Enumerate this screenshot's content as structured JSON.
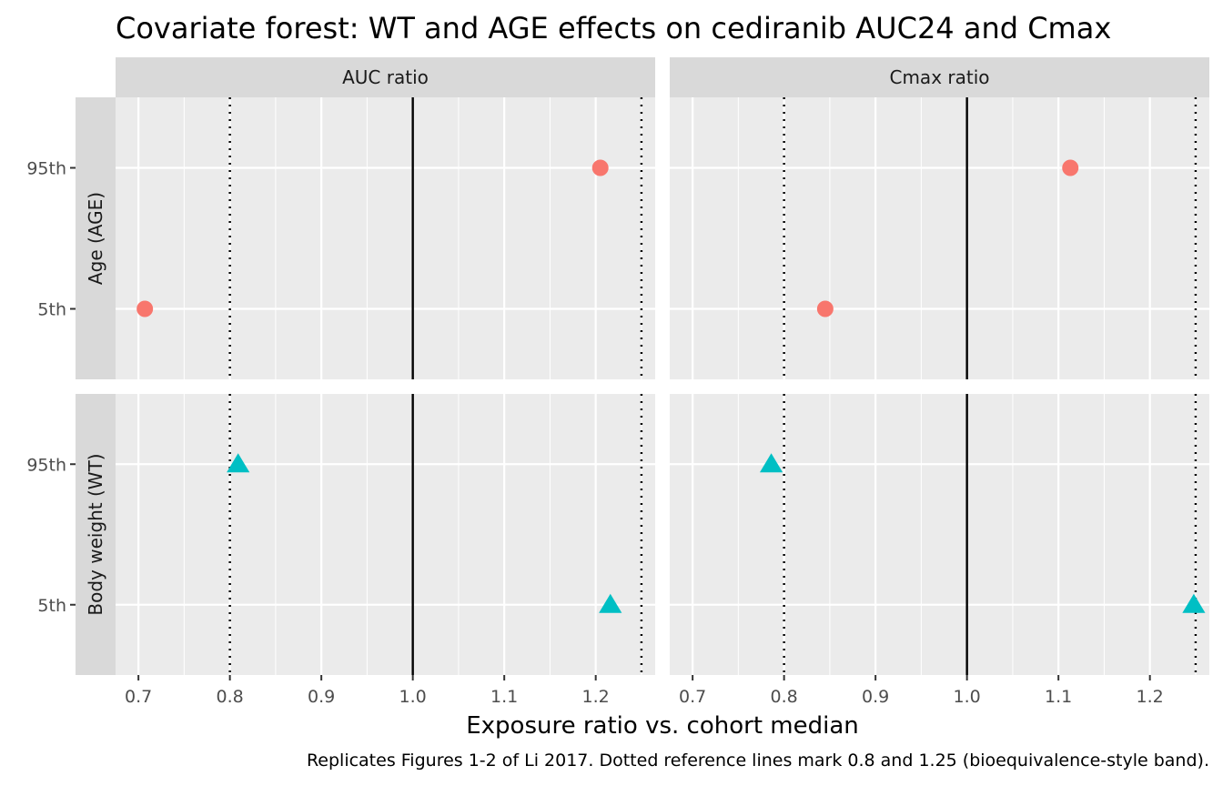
{
  "chart_data": {
    "type": "scatter",
    "title": "Covariate forest: WT and AGE effects on cediranib AUC24 and Cmax",
    "xlabel": "Exposure ratio vs. cohort median",
    "ylabel": "",
    "caption": "Replicates Figures 1-2 of Li 2017. Dotted reference lines mark 0.8 and 1.25 (bioequivalence-style band).",
    "facet_columns": [
      "AUC ratio",
      "Cmax ratio"
    ],
    "facet_rows": [
      "Age (AGE)",
      "Body weight (WT)"
    ],
    "y_categories": [
      "5th",
      "95th"
    ],
    "x_ticks": [
      0.7,
      0.8,
      0.9,
      1.0,
      1.1,
      1.2
    ],
    "x_tick_labels": [
      "0.7",
      "0.8",
      "0.9",
      "1.0",
      "1.1",
      "1.2"
    ],
    "xlim": [
      0.675,
      1.265
    ],
    "reference_lines": {
      "solid": 1.0,
      "dotted": [
        0.8,
        1.25
      ]
    },
    "grid": true,
    "legend": "none",
    "colors": {
      "age": "#F8766D",
      "wt": "#00BFC4",
      "panel": "#EBEBEB",
      "strip": "#D9D9D9"
    },
    "panels": [
      {
        "col": "AUC ratio",
        "row": "Age (AGE)",
        "shape": "circle",
        "color": "#F8766D",
        "points": [
          {
            "y": "95th",
            "x": 1.205
          },
          {
            "y": "5th",
            "x": 0.707
          }
        ]
      },
      {
        "col": "Cmax ratio",
        "row": "Age (AGE)",
        "shape": "circle",
        "color": "#F8766D",
        "points": [
          {
            "y": "95th",
            "x": 1.113
          },
          {
            "y": "5th",
            "x": 0.845
          }
        ]
      },
      {
        "col": "AUC ratio",
        "row": "Body weight (WT)",
        "shape": "triangle",
        "color": "#00BFC4",
        "points": [
          {
            "y": "95th",
            "x": 0.809
          },
          {
            "y": "5th",
            "x": 1.216
          }
        ]
      },
      {
        "col": "Cmax ratio",
        "row": "Body weight (WT)",
        "shape": "triangle",
        "color": "#00BFC4",
        "points": [
          {
            "y": "95th",
            "x": 0.786
          },
          {
            "y": "5th",
            "x": 1.248
          }
        ]
      }
    ]
  }
}
